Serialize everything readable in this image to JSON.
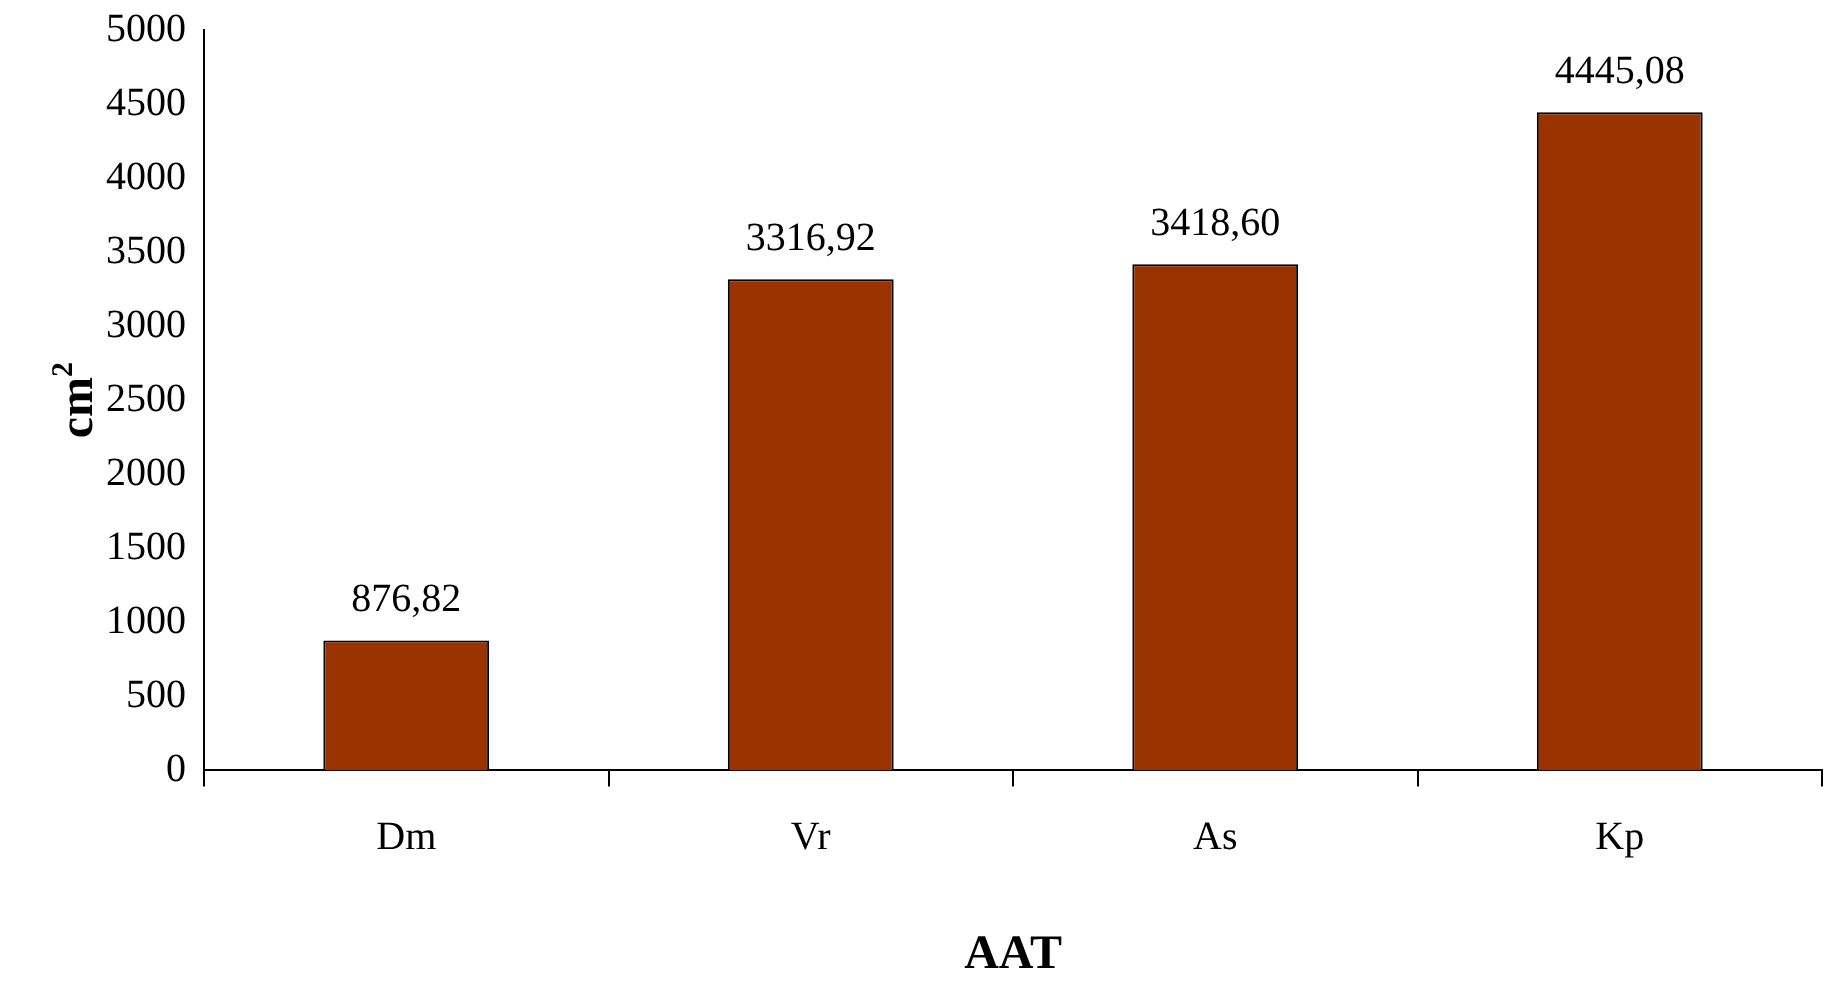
{
  "chart_data": {
    "type": "bar",
    "xlabel": "AAT",
    "ylabel": "cm$^{2}$",
    "categories": [
      "Dm",
      "Vr",
      "As",
      "Kp"
    ],
    "values": [
      876.82,
      3316.92,
      3418.6,
      4445.08
    ],
    "value_labels": [
      "876,82",
      "3316,92",
      "3418,60",
      "4445,08"
    ],
    "color": "#993300",
    "ylim": [
      0,
      5000
    ],
    "yticks": [
      0,
      500,
      1000,
      1500,
      2000,
      2500,
      3000,
      3500,
      4000,
      4500,
      5000
    ],
    "grid": false,
    "legend": false
  }
}
